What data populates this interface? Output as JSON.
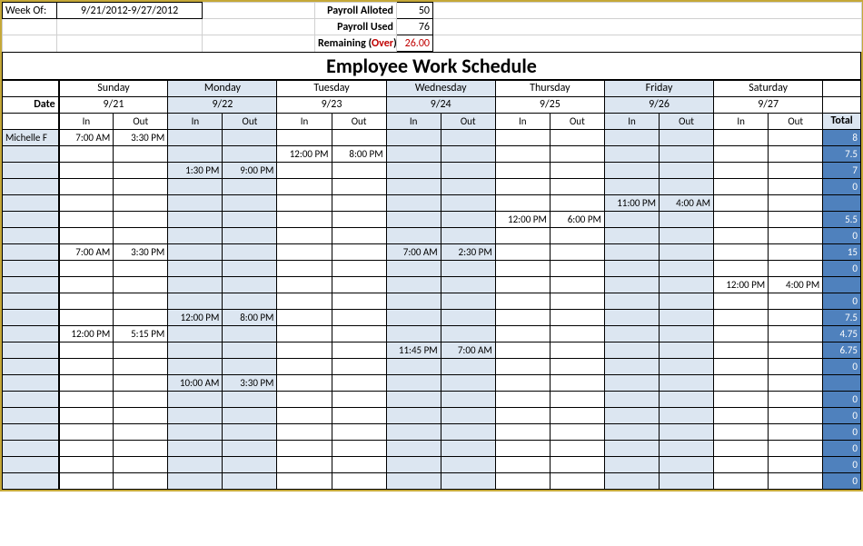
{
  "header": {
    "week_of_label": "Week Of:",
    "week_of_value": "9/21/2012-9/27/2012",
    "rows": [
      {
        "label": "Payroll Alloted",
        "value": "50",
        "red": false
      },
      {
        "label": "Payroll Used",
        "value": "76",
        "red": false
      },
      {
        "label": "Remaining (",
        "over": "Over",
        "label2": ")",
        "value": "26.00",
        "red": true
      }
    ]
  },
  "title": "Employee Work Schedule",
  "days": [
    "Sunday",
    "Monday",
    "Tuesday",
    "Wednesday",
    "Thursday",
    "Friday",
    "Saturday"
  ],
  "date_label": "Date",
  "dates": [
    "9/21",
    "9/22",
    "9/23",
    "9/24",
    "9/25",
    "9/26",
    "9/27"
  ],
  "in_label": "In",
  "out_label": "Out",
  "total_label": "Total",
  "blue_day_indices": [
    1,
    3,
    5
  ],
  "rows": [
    {
      "name": "Michelle F",
      "cells": [
        "7:00 AM",
        "3:30 PM",
        "",
        "",
        "",
        "",
        "",
        "",
        "",
        "",
        "",
        "",
        "",
        ""
      ],
      "total": "8"
    },
    {
      "name": "",
      "cells": [
        "",
        "",
        "",
        "",
        "12:00 PM",
        "8:00 PM",
        "",
        "",
        "",
        "",
        "",
        "",
        "",
        ""
      ],
      "total": "7.5"
    },
    {
      "name": "",
      "cells": [
        "",
        "",
        "1:30 PM",
        "9:00 PM",
        "",
        "",
        "",
        "",
        "",
        "",
        "",
        "",
        "",
        ""
      ],
      "total": "7"
    },
    {
      "name": "",
      "cells": [
        "",
        "",
        "",
        "",
        "",
        "",
        "",
        "",
        "",
        "",
        "",
        "",
        "",
        ""
      ],
      "total": "0"
    },
    {
      "name": "",
      "cells": [
        "",
        "",
        "",
        "",
        "",
        "",
        "",
        "",
        "",
        "",
        "11:00 PM",
        "4:00 AM",
        "",
        ""
      ],
      "total": ""
    },
    {
      "name": "",
      "cells": [
        "",
        "",
        "",
        "",
        "",
        "",
        "",
        "",
        "12:00 PM",
        "6:00 PM",
        "",
        "",
        "",
        ""
      ],
      "total": "5.5"
    },
    {
      "name": "",
      "cells": [
        "",
        "",
        "",
        "",
        "",
        "",
        "",
        "",
        "",
        "",
        "",
        "",
        "",
        ""
      ],
      "total": "0"
    },
    {
      "name": "",
      "cells": [
        "7:00 AM",
        "3:30 PM",
        "",
        "",
        "",
        "",
        "7:00 AM",
        "2:30 PM",
        "",
        "",
        "",
        "",
        "",
        ""
      ],
      "total": "15"
    },
    {
      "name": "",
      "cells": [
        "",
        "",
        "",
        "",
        "",
        "",
        "",
        "",
        "",
        "",
        "",
        "",
        "",
        ""
      ],
      "total": "0"
    },
    {
      "name": "",
      "cells": [
        "",
        "",
        "",
        "",
        "",
        "",
        "",
        "",
        "",
        "",
        "",
        "",
        "12:00 PM",
        "4:00 PM"
      ],
      "total": ""
    },
    {
      "name": "",
      "cells": [
        "",
        "",
        "",
        "",
        "",
        "",
        "",
        "",
        "",
        "",
        "",
        "",
        "",
        ""
      ],
      "total": "0"
    },
    {
      "name": "",
      "cells": [
        "",
        "",
        "12:00 PM",
        "8:00 PM",
        "",
        "",
        "",
        "",
        "",
        "",
        "",
        "",
        "",
        ""
      ],
      "total": "7.5"
    },
    {
      "name": "",
      "cells": [
        "12:00 PM",
        "5:15 PM",
        "",
        "",
        "",
        "",
        "",
        "",
        "",
        "",
        "",
        "",
        "",
        ""
      ],
      "total": "4.75"
    },
    {
      "name": "",
      "cells": [
        "",
        "",
        "",
        "",
        "",
        "",
        "11:45 PM",
        "7:00 AM",
        "",
        "",
        "",
        "",
        "",
        ""
      ],
      "total": "6.75"
    },
    {
      "name": "",
      "cells": [
        "",
        "",
        "",
        "",
        "",
        "",
        "",
        "",
        "",
        "",
        "",
        "",
        "",
        ""
      ],
      "total": "0"
    },
    {
      "name": "",
      "cells": [
        "",
        "",
        "10:00 AM",
        "3:30 PM",
        "",
        "",
        "",
        "",
        "",
        "",
        "",
        "",
        "",
        ""
      ],
      "total": ""
    },
    {
      "name": "",
      "cells": [
        "",
        "",
        "",
        "",
        "",
        "",
        "",
        "",
        "",
        "",
        "",
        "",
        "",
        ""
      ],
      "total": "0"
    },
    {
      "name": "",
      "cells": [
        "",
        "",
        "",
        "",
        "",
        "",
        "",
        "",
        "",
        "",
        "",
        "",
        "",
        ""
      ],
      "total": "0"
    },
    {
      "name": "",
      "cells": [
        "",
        "",
        "",
        "",
        "",
        "",
        "",
        "",
        "",
        "",
        "",
        "",
        "",
        ""
      ],
      "total": "0"
    },
    {
      "name": "",
      "cells": [
        "",
        "",
        "",
        "",
        "",
        "",
        "",
        "",
        "",
        "",
        "",
        "",
        "",
        ""
      ],
      "total": "0"
    },
    {
      "name": "",
      "cells": [
        "",
        "",
        "",
        "",
        "",
        "",
        "",
        "",
        "",
        "",
        "",
        "",
        "",
        ""
      ],
      "total": "0"
    },
    {
      "name": "",
      "cells": [
        "",
        "",
        "",
        "",
        "",
        "",
        "",
        "",
        "",
        "",
        "",
        "",
        "",
        ""
      ],
      "total": "0"
    }
  ],
  "colors": {
    "blue_fill": "#dce6f1",
    "total_fill": "#4f81bd",
    "over_red": "#c00000",
    "outer_border": "#c5a838"
  },
  "col_widths": {
    "name": 60,
    "time": 58,
    "total": 40
  }
}
